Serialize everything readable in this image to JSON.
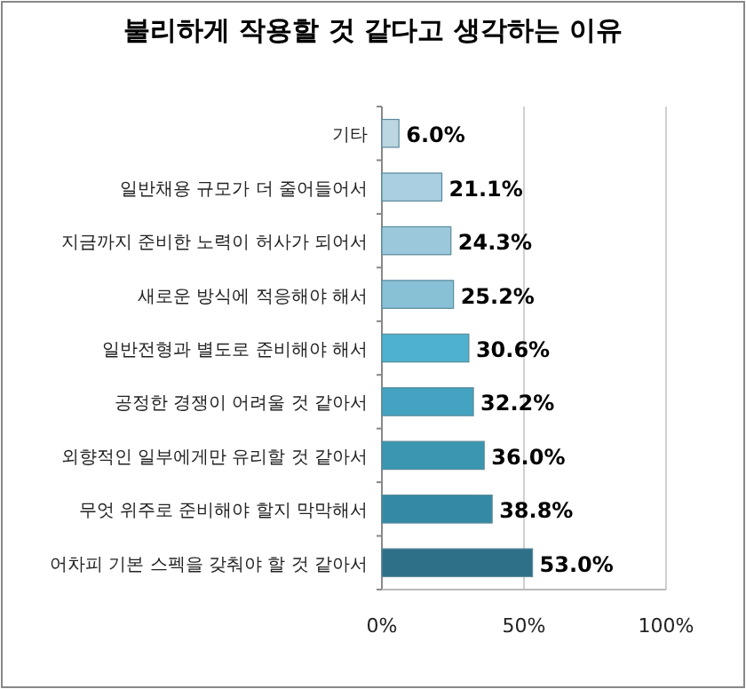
{
  "chart_data": {
    "type": "bar",
    "orientation": "horizontal",
    "title": "불리하게 작용할 것 같다고 생각하는 이유",
    "categories": [
      "기타",
      "일반채용 규모가 더 줄어들어서",
      "지금까지 준비한 노력이 허사가 되어서",
      "새로운 방식에 적응해야 해서",
      "일반전형과 별도로 준비해야 해서",
      "공정한 경쟁이 어려울 것 같아서",
      "외향적인 일부에게만 유리할 것 같아서",
      "무엇 위주로 준비해야 할지 막막해서",
      "어차피 기본 스펙을 갖춰야 할 것 같아서"
    ],
    "values": [
      6.0,
      21.1,
      24.3,
      25.2,
      30.6,
      32.2,
      36.0,
      38.8,
      53.0
    ],
    "value_labels": [
      "6.0%",
      "21.1%",
      "24.3%",
      "25.2%",
      "30.6%",
      "32.2%",
      "36.0%",
      "38.8%",
      "53.0%"
    ],
    "colors": [
      "#bcd6e2",
      "#a9cfe1",
      "#9cc8db",
      "#88c0d6",
      "#4eb1cd",
      "#44a3c1",
      "#3a96b1",
      "#348aa4",
      "#2e7087"
    ],
    "xlim": [
      0,
      100
    ],
    "xticks": [
      {
        "value": 0,
        "label": "0%"
      },
      {
        "value": 50,
        "label": "50%"
      },
      {
        "value": 100,
        "label": "100%"
      }
    ],
    "grid": "x"
  }
}
